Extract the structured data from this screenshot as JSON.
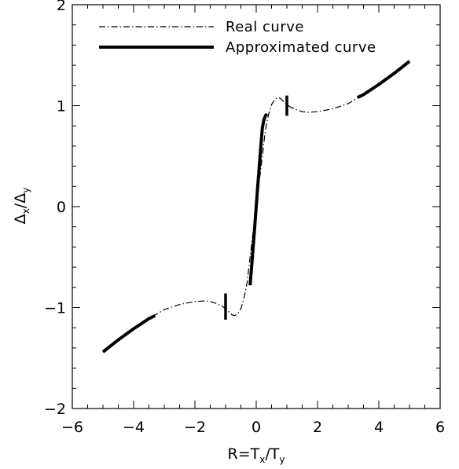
{
  "chart_data": {
    "type": "line",
    "xlabel": {
      "prefix": "R=T",
      "sub1": "x",
      "mid": "/T",
      "sub2": "y"
    },
    "ylabel": {
      "prefix": "Δ",
      "sub1": "x",
      "mid": "/Δ",
      "sub2": "y"
    },
    "xlim": [
      -6,
      6
    ],
    "ylim": [
      -2,
      2
    ],
    "x_ticks": [
      -6,
      -4,
      -2,
      0,
      2,
      4,
      6
    ],
    "x_tick_labels": [
      "−6",
      "−4",
      "−2",
      "0",
      "2",
      "4",
      "6"
    ],
    "y_ticks": [
      -2,
      -1,
      0,
      1,
      2
    ],
    "y_tick_labels": [
      "−2",
      "−1",
      "0",
      "1",
      "2"
    ],
    "legend_position": "top-left",
    "series": [
      {
        "name": "Real curve",
        "style": "dash-dot",
        "x": [
          -5.0,
          -4.5,
          -4.0,
          -3.5,
          -3.0,
          -2.5,
          -2.0,
          -1.7,
          -1.5,
          -1.3,
          -1.1,
          -1.0,
          -0.9,
          -0.8,
          -0.7,
          -0.6,
          -0.5,
          -0.4,
          -0.3,
          -0.2,
          -0.1,
          0.0,
          0.1,
          0.2,
          0.3,
          0.4,
          0.5,
          0.6,
          0.7,
          0.8,
          0.9,
          1.0,
          1.1,
          1.3,
          1.5,
          1.7,
          2.0,
          2.5,
          3.0,
          3.5,
          4.0,
          4.5,
          5.0
        ],
        "y": [
          -1.44,
          -1.32,
          -1.21,
          -1.11,
          -1.02,
          -0.97,
          -0.94,
          -0.935,
          -0.94,
          -0.96,
          -0.99,
          -1.01,
          -1.04,
          -1.07,
          -1.08,
          -1.06,
          -1.01,
          -0.91,
          -0.76,
          -0.5,
          -0.25,
          0.0,
          0.25,
          0.5,
          0.76,
          0.91,
          1.01,
          1.06,
          1.08,
          1.07,
          1.04,
          1.01,
          0.99,
          0.96,
          0.94,
          0.935,
          0.94,
          0.97,
          1.02,
          1.11,
          1.21,
          1.32,
          1.44
        ]
      },
      {
        "name": "Approximated curve",
        "style": "solid-thick",
        "segments": [
          {
            "x": [
              -5.0,
              -4.5,
              -4.0,
              -3.5,
              -3.3
            ],
            "y": [
              -1.44,
              -1.32,
              -1.21,
              -1.11,
              -1.08
            ]
          },
          {
            "x": [
              -0.2,
              -0.15,
              -0.1,
              -0.05,
              0.0,
              0.05,
              0.1,
              0.15,
              0.2,
              0.25,
              0.3,
              0.35
            ],
            "y": [
              -0.78,
              -0.6,
              -0.4,
              -0.2,
              0.0,
              0.2,
              0.4,
              0.6,
              0.78,
              0.86,
              0.9,
              0.92
            ]
          },
          {
            "x": [
              3.3,
              3.5,
              4.0,
              4.5,
              5.0
            ],
            "y": [
              1.08,
              1.11,
              1.21,
              1.32,
              1.44
            ]
          }
        ]
      }
    ],
    "markers": [
      {
        "x": -1.0,
        "y_from": -1.12,
        "y_to": -0.86
      },
      {
        "x": 1.0,
        "y_from": 0.9,
        "y_to": 1.1
      }
    ]
  },
  "legend": [
    {
      "label": "Real curve",
      "style": "dash-dot"
    },
    {
      "label": "Approximated curve",
      "style": "solid-thick"
    }
  ]
}
